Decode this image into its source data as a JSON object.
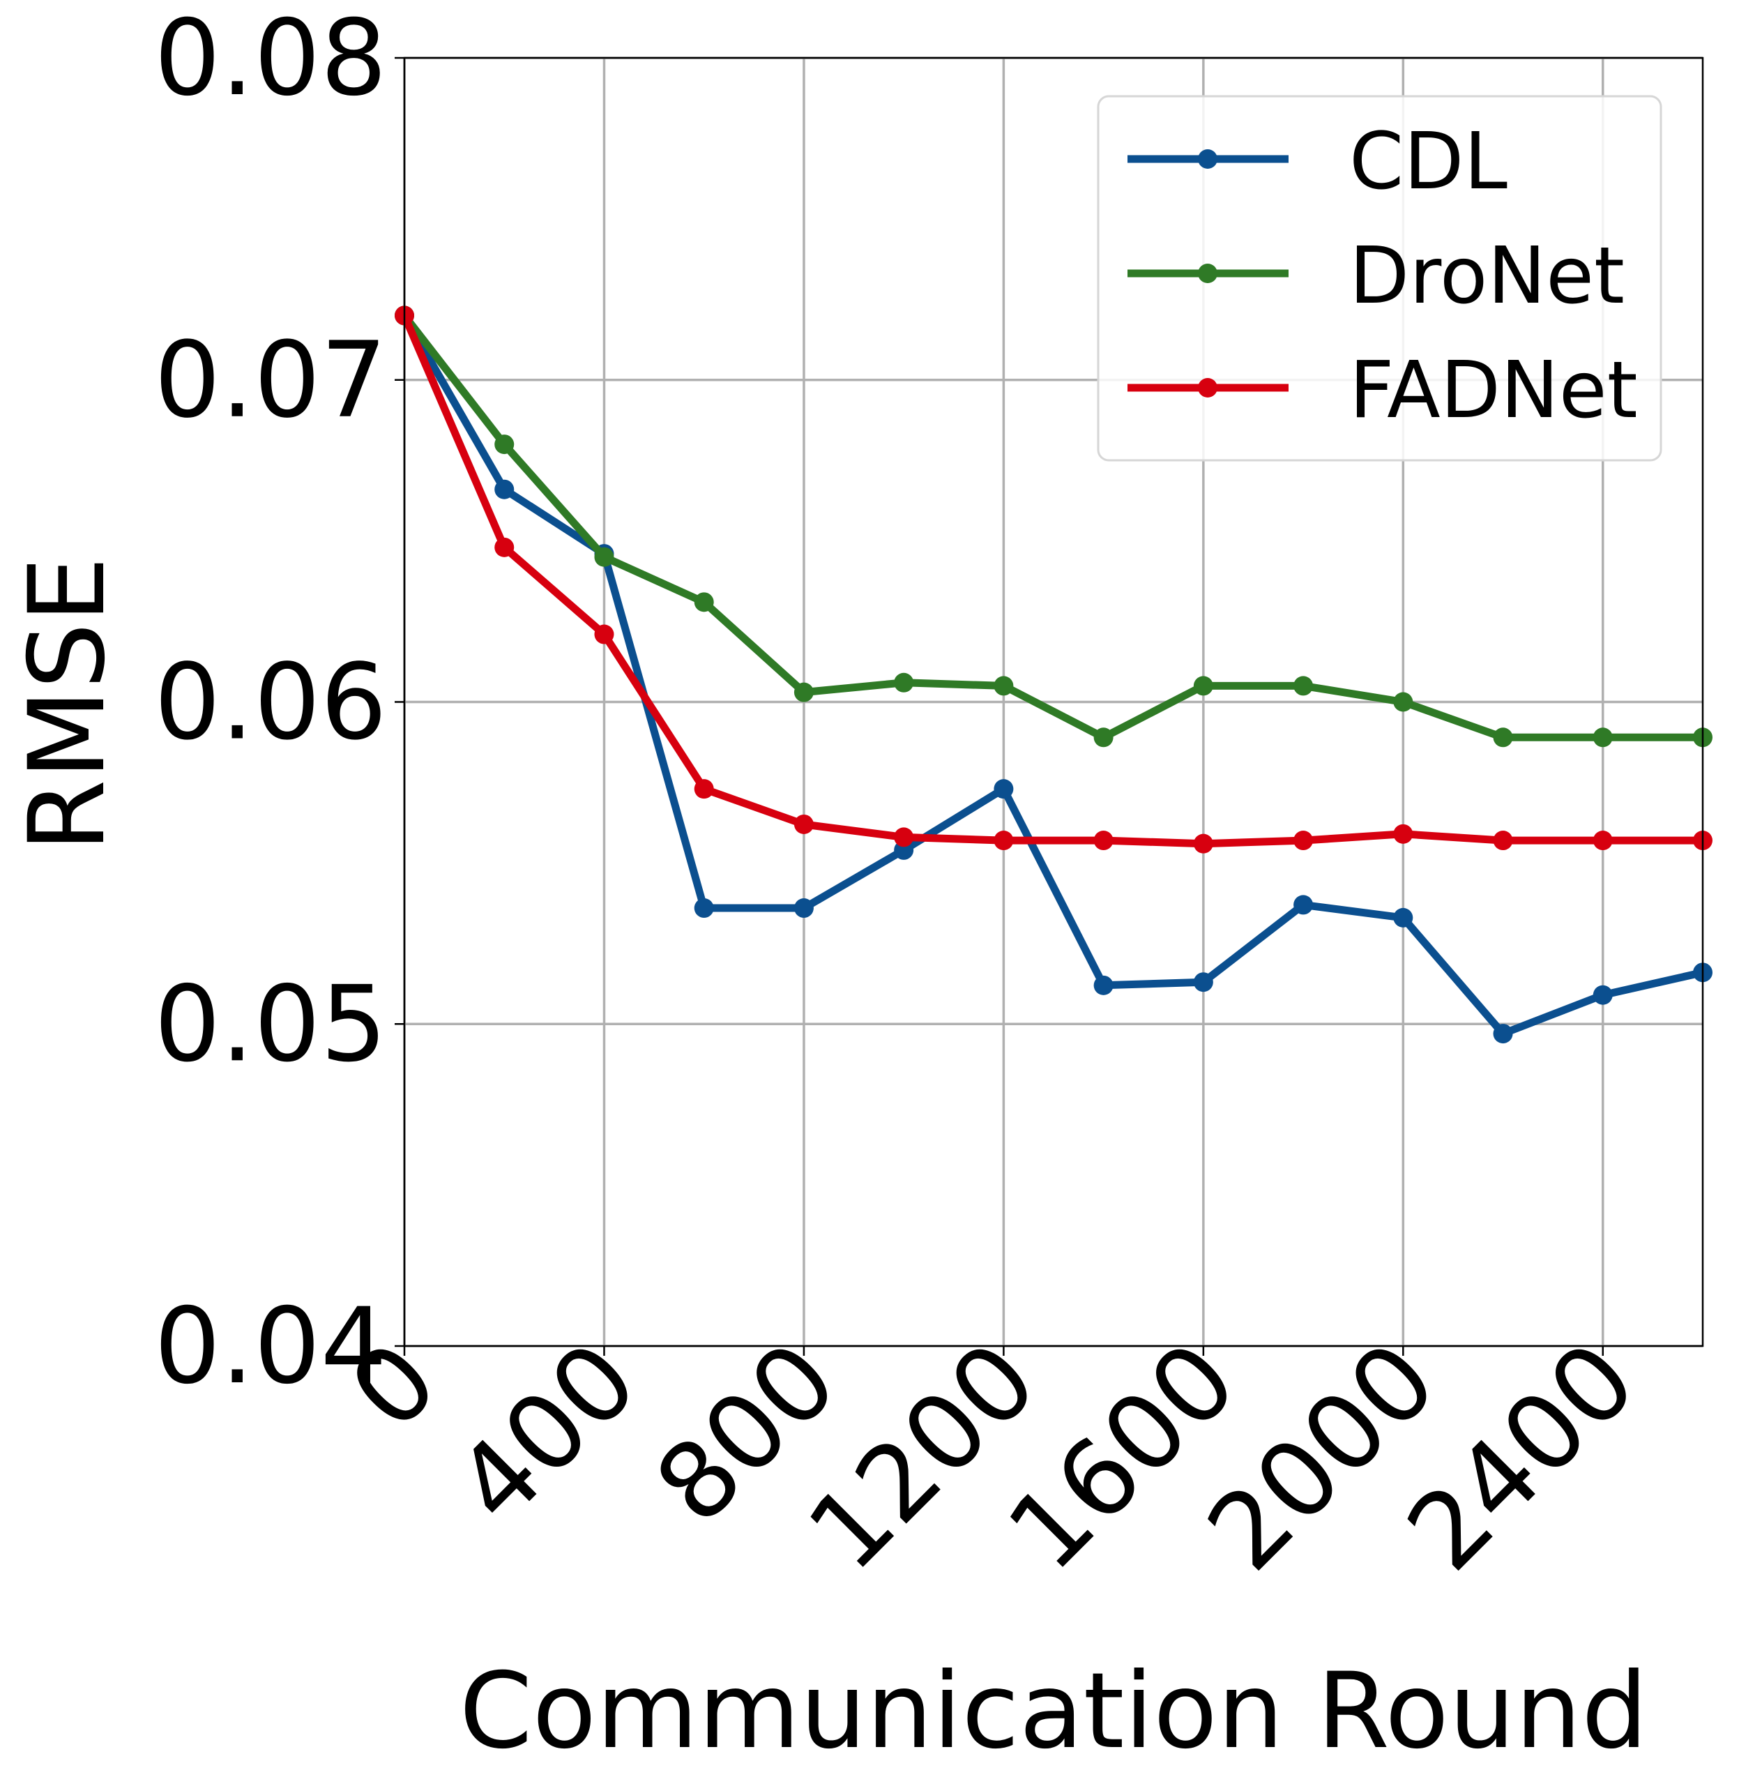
{
  "chart_data": {
    "type": "line",
    "title": "",
    "xlabel": "Communication Round",
    "ylabel": "RMSE",
    "xlim": [
      0,
      2600
    ],
    "ylim": [
      0.04,
      0.08
    ],
    "xticks": [
      0,
      400,
      800,
      1200,
      1600,
      2000,
      2400
    ],
    "xtick_labels": [
      "0",
      "400",
      "800",
      "1200",
      "1600",
      "2000",
      "2400"
    ],
    "yticks": [
      0.04,
      0.05,
      0.06,
      0.07,
      0.08
    ],
    "ytick_labels": [
      "0.04",
      "0.05",
      "0.06",
      "0.07",
      "0.08"
    ],
    "grid": true,
    "legend_position": "top-right",
    "x": [
      0,
      200,
      400,
      600,
      800,
      1000,
      1200,
      1400,
      1600,
      1800,
      2000,
      2200,
      2400,
      2600
    ],
    "series": [
      {
        "name": "CDL",
        "color": "#0b4f8f",
        "values": [
          0.072,
          0.0666,
          0.0646,
          0.0536,
          0.0536,
          0.0554,
          0.0573,
          0.0512,
          0.0513,
          0.0537,
          0.0533,
          0.0497,
          0.0509,
          0.0516
        ]
      },
      {
        "name": "DroNet",
        "color": "#2f7a26",
        "values": [
          0.072,
          0.068,
          0.0645,
          0.0631,
          0.0603,
          0.0606,
          0.0605,
          0.0589,
          0.0605,
          0.0605,
          0.06,
          0.0589,
          0.0589,
          0.0589
        ]
      },
      {
        "name": "FADNet",
        "color": "#d7000f",
        "values": [
          0.072,
          0.0648,
          0.0621,
          0.0573,
          0.0562,
          0.0558,
          0.0557,
          0.0557,
          0.0556,
          0.0557,
          0.0559,
          0.0557,
          0.0557,
          0.0557
        ]
      }
    ]
  }
}
